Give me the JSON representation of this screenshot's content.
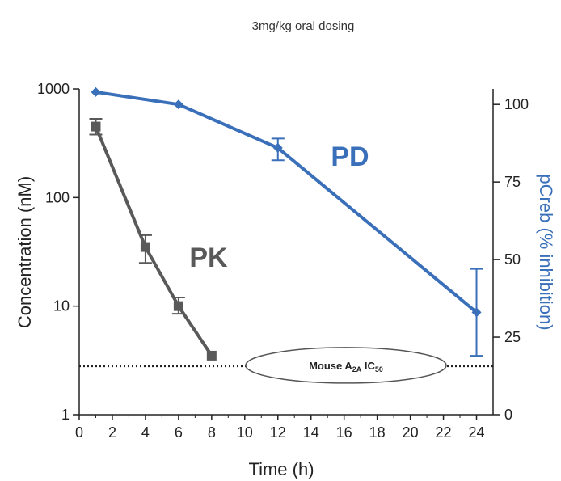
{
  "chart_data": {
    "type": "line",
    "title": "3mg/kg oral dosing",
    "xlabel": "Time (h)",
    "ylabel_left": "Concentration (nM)",
    "ylabel_right": "pCreb (% inhibition)",
    "xlim": [
      0,
      25
    ],
    "xticks": [
      0,
      2,
      4,
      6,
      8,
      10,
      12,
      14,
      16,
      18,
      20,
      22,
      24
    ],
    "ylim_left": [
      1,
      1000
    ],
    "yscale_left": "log",
    "yticks_left": [
      "1",
      "10",
      "100",
      "1000"
    ],
    "ylim_right": [
      0,
      105
    ],
    "yticks_right": [
      "0",
      "25",
      "50",
      "75",
      "100"
    ],
    "grid": false,
    "series": [
      {
        "name": "PK",
        "axis": "left",
        "color": "#595959",
        "marker": "square",
        "points": [
          {
            "x": 1,
            "y": 450,
            "err_low": 380,
            "err_high": 530
          },
          {
            "x": 4,
            "y": 35,
            "err_low": 25,
            "err_high": 45
          },
          {
            "x": 6,
            "y": 10,
            "err_low": 8.5,
            "err_high": 12
          },
          {
            "x": 8,
            "y": 3.5,
            "err_low": 3.5,
            "err_high": 3.5
          }
        ]
      },
      {
        "name": "PD",
        "axis": "right",
        "color": "#3a6fba",
        "marker": "diamond",
        "points": [
          {
            "x": 1,
            "y": 104,
            "err_low": 104,
            "err_high": 104
          },
          {
            "x": 6,
            "y": 100,
            "err_low": 100,
            "err_high": 100
          },
          {
            "x": 12,
            "y": 86,
            "err_low": 82,
            "err_high": 89
          },
          {
            "x": 24,
            "y": 33,
            "err_low": 19,
            "err_high": 47
          }
        ]
      }
    ],
    "reference_line": {
      "axis": "left",
      "y": 2.8,
      "style": "dotted",
      "label_main": "Mouse A",
      "label_sub1": "2A",
      "label_mid": " IC",
      "label_sub2": "50"
    }
  }
}
